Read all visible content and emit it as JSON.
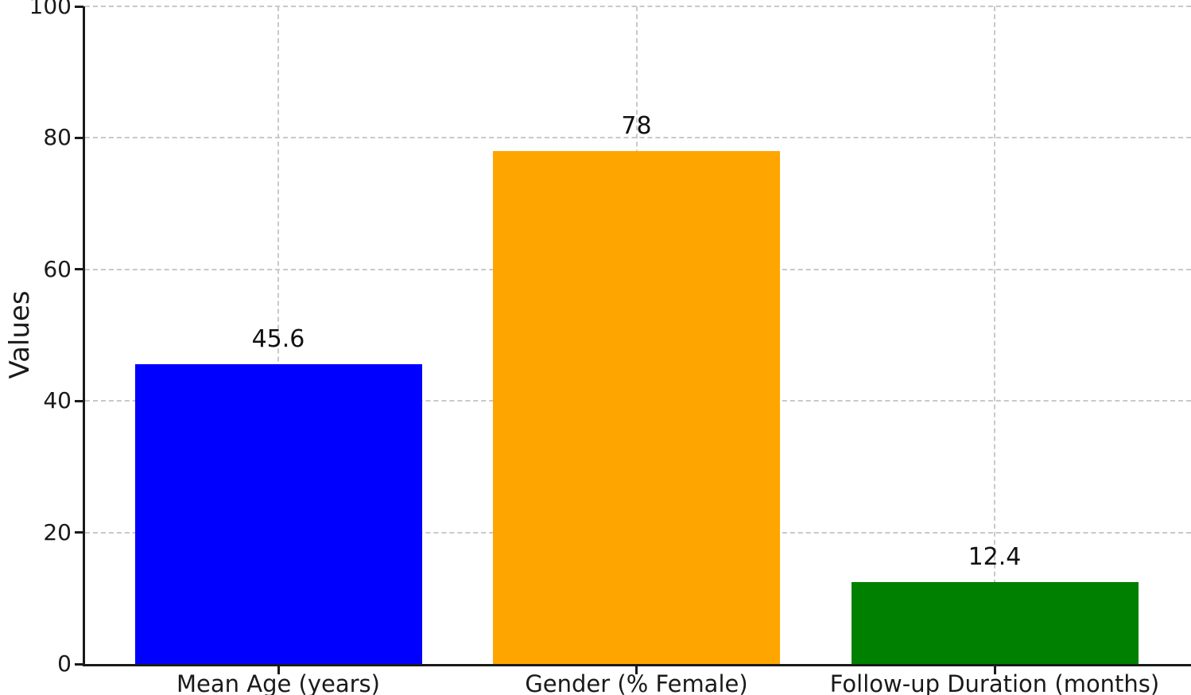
{
  "chart_data": {
    "type": "bar",
    "title": "",
    "xlabel": "",
    "ylabel": "Values",
    "categories": [
      "Mean Age (years)",
      "Gender (% Female)",
      "Follow-up Duration (months)"
    ],
    "values": [
      45.6,
      78,
      12.4
    ],
    "value_labels": [
      "45.6",
      "78",
      "12.4"
    ],
    "bar_colors": [
      "#0000ff",
      "#ffa500",
      "#008000"
    ],
    "ylim": [
      0,
      100
    ],
    "yticks": [
      0,
      20,
      40,
      60,
      80,
      100
    ],
    "grid": "both-dashed",
    "grid_color": "#c9c9c9",
    "axis_color": "#1a1a1a",
    "background": "#ffffff",
    "legend": "none"
  }
}
